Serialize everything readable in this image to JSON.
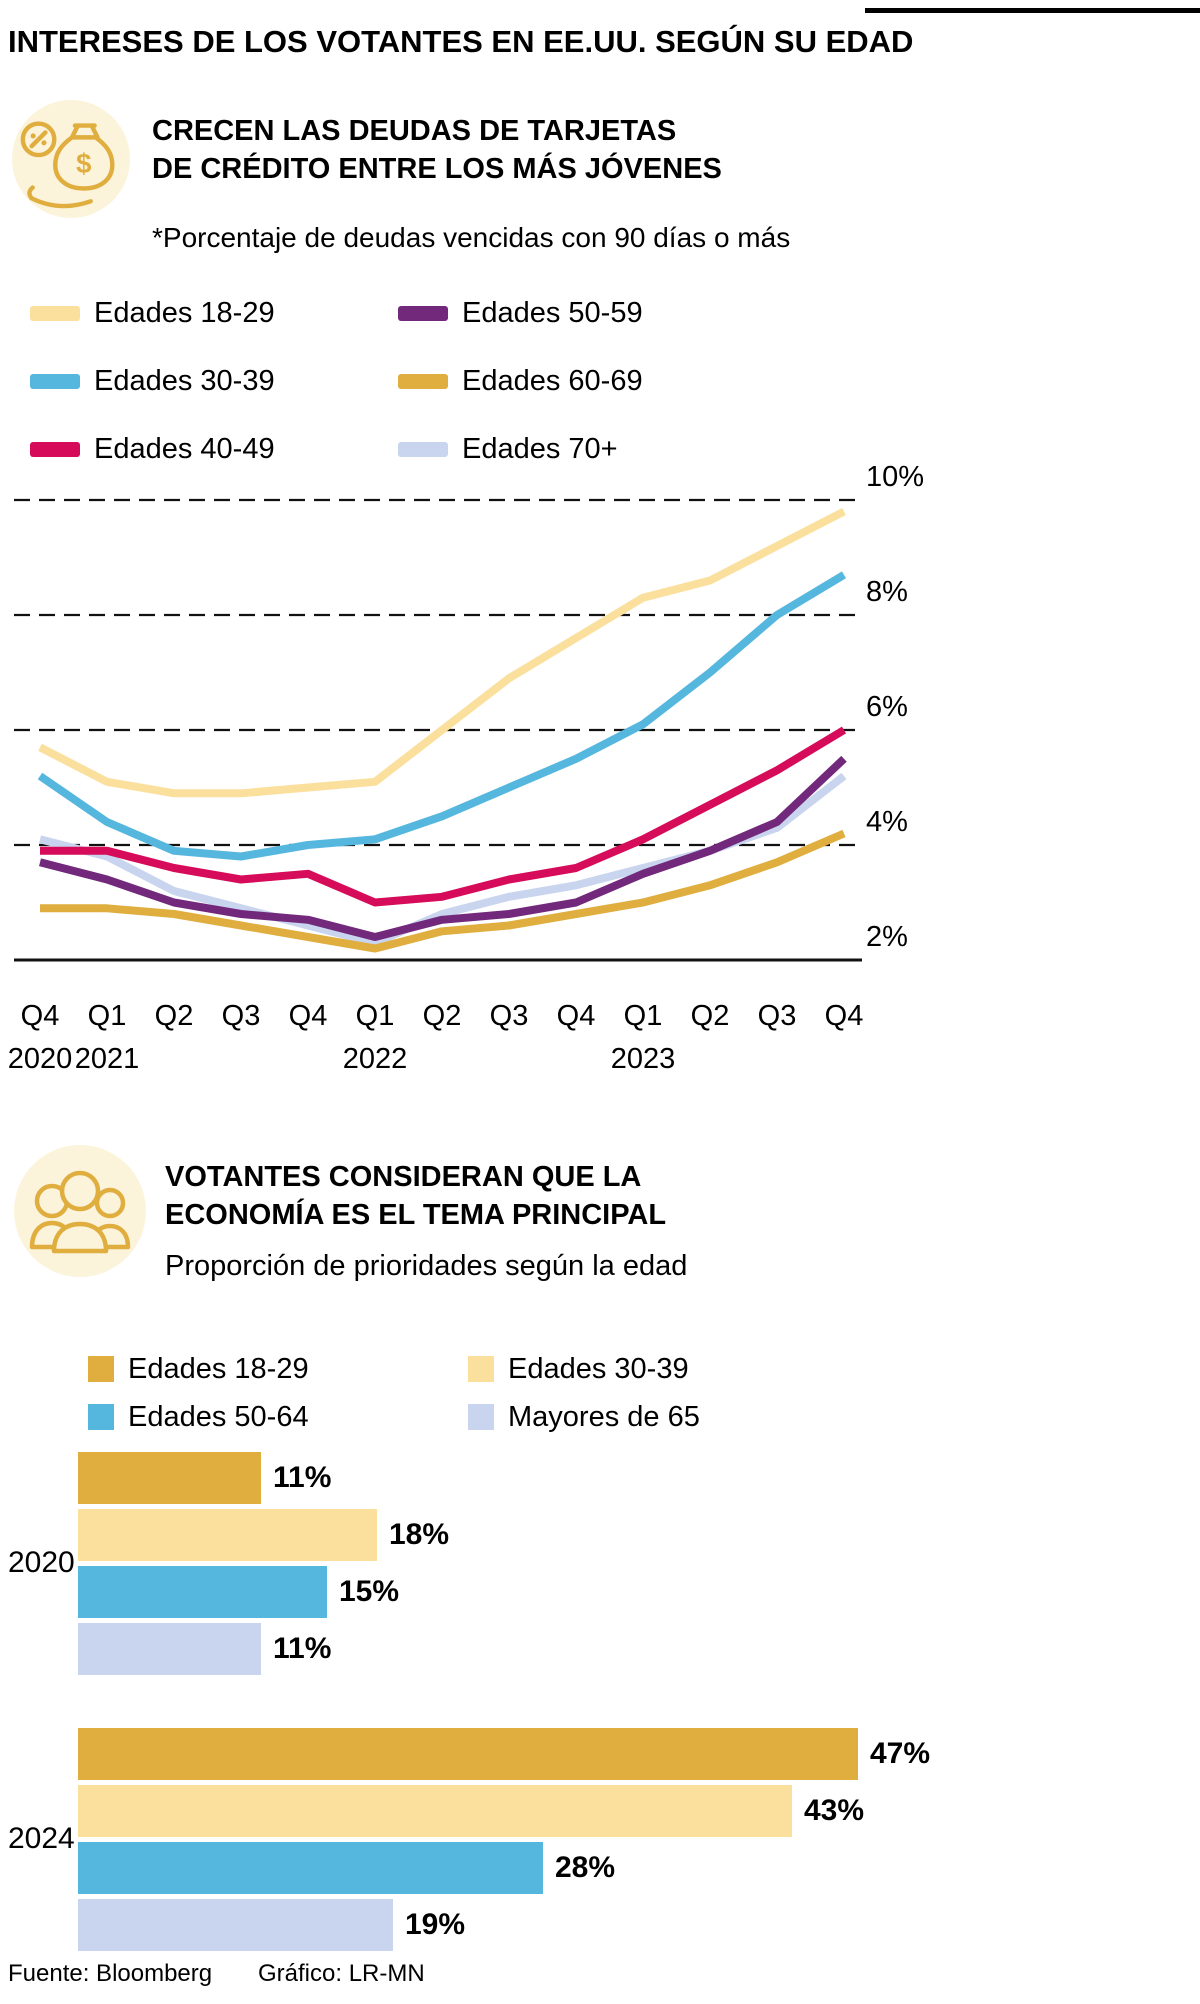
{
  "page": {
    "title": "INTERESES DE LOS VOTANTES EN EE.UU. SEGÚN SU EDAD",
    "footer": {
      "source": "Fuente: Bloomberg",
      "credit": "Gráfico: LR-MN"
    }
  },
  "icons": {
    "section1": "money-percent-icon",
    "section2": "people-group-icon"
  },
  "colors": {
    "cream": "#FBDF9D",
    "blue": "#56B7DE",
    "crimson": "#D60B59",
    "purple": "#73297B",
    "gold": "#DFAE3E",
    "lavender": "#C9D4EE",
    "icon_gold": "#DFAE3E",
    "icon_bg": "#FCF3DB",
    "grid": "#111111"
  },
  "chart_data": [
    {
      "type": "line",
      "title": "CRECEN LAS DEUDAS DE TARJETAS DE CRÉDITO ENTRE LOS MÁS JÓVENES",
      "title_lines": [
        "CRECEN LAS DEUDAS DE TARJETAS",
        "DE CRÉDITO ENTRE LOS MÁS JÓVENES"
      ],
      "subtitle": "*Porcentaje de deudas vencidas con 90 días o más",
      "grid": "dashed-horizontal",
      "legend_position": "top",
      "ylim": [
        2,
        10
      ],
      "yticks": [
        {
          "label": "10%",
          "value": 10
        },
        {
          "label": "8%",
          "value": 8
        },
        {
          "label": "6%",
          "value": 6
        },
        {
          "label": "4%",
          "value": 4
        },
        {
          "label": "2%",
          "value": 2
        }
      ],
      "x_tick_labels": [
        "Q4",
        "Q1",
        "Q2",
        "Q3",
        "Q4",
        "Q1",
        "Q2",
        "Q3",
        "Q4",
        "Q1",
        "Q2",
        "Q3",
        "Q4"
      ],
      "x_year_labels": [
        {
          "index": 0,
          "label": "2020"
        },
        {
          "index": 1,
          "label": "2021"
        },
        {
          "index": 5,
          "label": "2022"
        },
        {
          "index": 9,
          "label": "2023"
        }
      ],
      "series": [
        {
          "name": "Edades 18-29",
          "color": "#FBDF9D",
          "values": [
            5.7,
            5.1,
            4.9,
            4.9,
            5.0,
            5.1,
            6.0,
            6.9,
            7.6,
            8.3,
            8.6,
            9.2,
            9.8
          ]
        },
        {
          "name": "Edades 30-39",
          "color": "#56B7DE",
          "values": [
            5.2,
            4.4,
            3.9,
            3.8,
            4.0,
            4.1,
            4.5,
            5.0,
            5.5,
            6.1,
            7.0,
            8.0,
            8.7
          ]
        },
        {
          "name": "Edades 40-49",
          "color": "#D60B59",
          "values": [
            3.9,
            3.9,
            3.6,
            3.4,
            3.5,
            3.0,
            3.1,
            3.4,
            3.6,
            4.1,
            4.7,
            5.3,
            6.0
          ]
        },
        {
          "name": "Edades 50-59",
          "color": "#73297B",
          "values": [
            3.7,
            3.4,
            3.0,
            2.8,
            2.7,
            2.4,
            2.7,
            2.8,
            3.0,
            3.5,
            3.9,
            4.4,
            5.5
          ]
        },
        {
          "name": "Edades 60-69",
          "color": "#DFAE3E",
          "values": [
            2.9,
            2.9,
            2.8,
            2.6,
            2.4,
            2.2,
            2.5,
            2.6,
            2.8,
            3.0,
            3.3,
            3.7,
            4.2
          ]
        },
        {
          "name": "Edades 70+",
          "color": "#C9D4EE",
          "values": [
            4.1,
            3.8,
            3.2,
            2.9,
            2.6,
            2.3,
            2.8,
            3.1,
            3.3,
            3.6,
            3.9,
            4.3,
            5.2
          ]
        }
      ]
    },
    {
      "type": "bar",
      "orientation": "horizontal",
      "title": "VOTANTES CONSIDERAN QUE LA ECONOMÍA ES EL TEMA PRINCIPAL",
      "title_lines": [
        "VOTANTES CONSIDERAN QUE LA",
        "ECONOMÍA ES EL TEMA PRINCIPAL"
      ],
      "subtitle": "Proporción de prioridades según la edad",
      "legend": [
        {
          "label": "Edades 18-29",
          "color": "#DFAE3E"
        },
        {
          "label": "Edades 30-39",
          "color": "#FBDF9D"
        },
        {
          "label": "Edades 50-64",
          "color": "#56B7DE"
        },
        {
          "label": "Mayores de 65",
          "color": "#C9D4EE"
        }
      ],
      "groups": [
        {
          "label": "2020",
          "bars": [
            {
              "series": "Edades 18-29",
              "value": 11,
              "label": "11%"
            },
            {
              "series": "Edades 30-39",
              "value": 18,
              "label": "18%"
            },
            {
              "series": "Edades 50-64",
              "value": 15,
              "label": "15%"
            },
            {
              "series": "Mayores de 65",
              "value": 11,
              "label": "11%"
            }
          ]
        },
        {
          "label": "2024",
          "bars": [
            {
              "series": "Edades 18-29",
              "value": 47,
              "label": "47%"
            },
            {
              "series": "Edades 30-39",
              "value": 43,
              "label": "43%"
            },
            {
              "series": "Edades 50-64",
              "value": 28,
              "label": "28%"
            },
            {
              "series": "Mayores de 65",
              "value": 19,
              "label": "19%"
            }
          ]
        }
      ]
    }
  ]
}
